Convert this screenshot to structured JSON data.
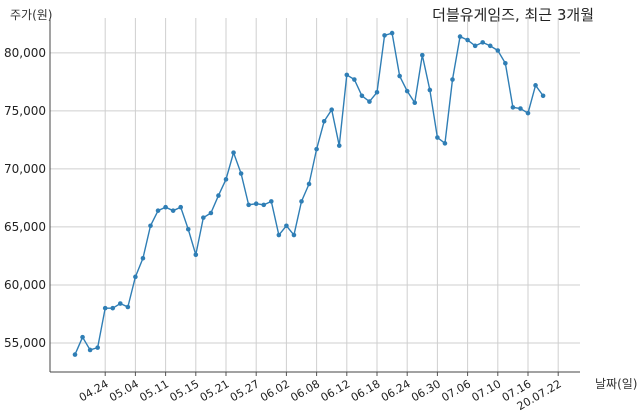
{
  "chart_data": {
    "type": "line",
    "title": "더블유게임즈, 최근 3개월",
    "ylabel": "주가(원)",
    "xlabel": "날짜(일)",
    "ylim": [
      52500,
      83000
    ],
    "yticks": [
      55000,
      60000,
      65000,
      70000,
      75000,
      80000
    ],
    "ytick_labels": [
      "55,000",
      "60,000",
      "65,000",
      "70,000",
      "75,000",
      "80,000"
    ],
    "grid": true,
    "color": "#2f7eb5",
    "xtick_labels": [
      "04.24",
      "05.04",
      "05.11",
      "05.15",
      "05.21",
      "05.27",
      "06.02",
      "06.08",
      "06.12",
      "06.18",
      "06.24",
      "06.30",
      "07.06",
      "07.10",
      "07.16",
      "20.07.22"
    ],
    "xtick_index": [
      4,
      8,
      12,
      16,
      20,
      24,
      28,
      32,
      36,
      40,
      44,
      48,
      52,
      56,
      60,
      64
    ],
    "values": [
      54000,
      55500,
      54400,
      54600,
      58000,
      58000,
      58400,
      58100,
      60700,
      62300,
      65100,
      66400,
      66700,
      66400,
      66700,
      64800,
      62600,
      65800,
      66200,
      67700,
      69100,
      71400,
      69600,
      66900,
      67000,
      66900,
      67200,
      64300,
      65100,
      64300,
      67200,
      68700,
      71700,
      74100,
      75100,
      72000,
      78100,
      77700,
      76300,
      75800,
      76600,
      81500,
      81700,
      78000,
      76700,
      75700,
      79800,
      76800,
      72700,
      72200,
      77700,
      81400,
      81100,
      80600,
      80900,
      80600,
      80200,
      79100,
      75300,
      75200,
      74800,
      77200,
      76300
    ]
  }
}
